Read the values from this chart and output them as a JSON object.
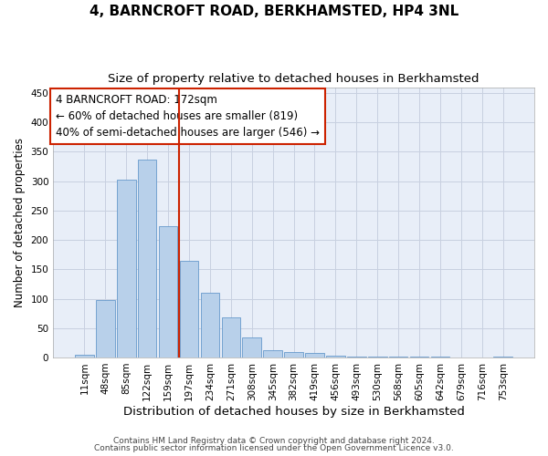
{
  "title": "4, BARNCROFT ROAD, BERKHAMSTED, HP4 3NL",
  "subtitle": "Size of property relative to detached houses in Berkhamsted",
  "xlabel": "Distribution of detached houses by size in Berkhamsted",
  "ylabel": "Number of detached properties",
  "footer_line1": "Contains HM Land Registry data © Crown copyright and database right 2024.",
  "footer_line2": "Contains public sector information licensed under the Open Government Licence v3.0.",
  "categories": [
    "11sqm",
    "48sqm",
    "85sqm",
    "122sqm",
    "159sqm",
    "197sqm",
    "234sqm",
    "271sqm",
    "308sqm",
    "345sqm",
    "382sqm",
    "419sqm",
    "456sqm",
    "493sqm",
    "530sqm",
    "568sqm",
    "605sqm",
    "642sqm",
    "679sqm",
    "716sqm",
    "753sqm"
  ],
  "bar_values": [
    5,
    97,
    303,
    337,
    224,
    165,
    110,
    68,
    34,
    13,
    9,
    7,
    3,
    1,
    1,
    2,
    1,
    1,
    0,
    0,
    1
  ],
  "bar_color": "#b8d0ea",
  "bar_edge_color": "#6699cc",
  "annotation_line1": "4 BARNCROFT ROAD: 172sqm",
  "annotation_line2": "← 60% of detached houses are smaller (819)",
  "annotation_line3": "40% of semi-detached houses are larger (546) →",
  "annotation_box_facecolor": "#ffffff",
  "annotation_box_edgecolor": "#cc2200",
  "vline_color": "#cc2200",
  "vline_position": 4.5,
  "ylim": [
    0,
    460
  ],
  "yticks": [
    0,
    50,
    100,
    150,
    200,
    250,
    300,
    350,
    400,
    450
  ],
  "grid_color": "#c8d0e0",
  "background_color": "#e8eef8",
  "title_fontsize": 11,
  "subtitle_fontsize": 9.5,
  "xlabel_fontsize": 9.5,
  "ylabel_fontsize": 8.5,
  "tick_fontsize": 7.5,
  "annotation_fontsize": 8.5,
  "footer_fontsize": 6.5
}
